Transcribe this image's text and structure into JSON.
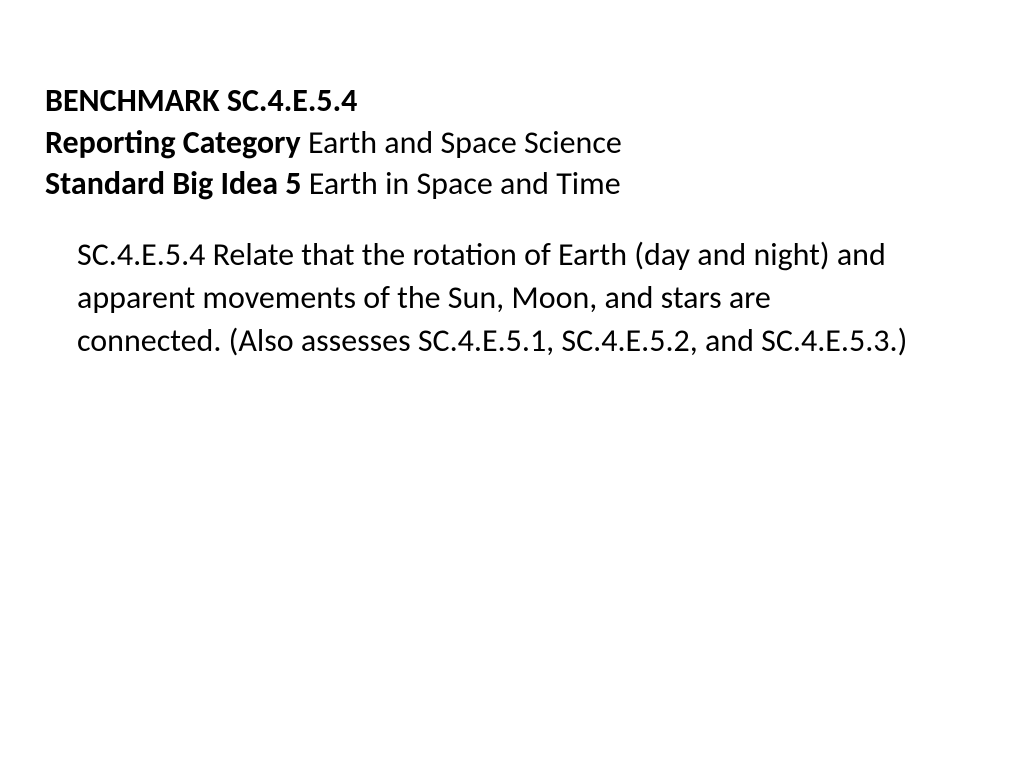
{
  "header": {
    "line1_bold": "BENCHMARK SC.4.E.5.4",
    "line2_label": "Reporting Category",
    "line2_value": " Earth and Space Science",
    "line3_label": "Standard Big Idea 5",
    "line3_value": " Earth in Space and Time"
  },
  "description": "SC.4.E.5.4 Relate that the rotation of Earth (day and night) and apparent movements of the Sun, Moon, and stars are connected. (Also assesses SC.4.E.5.1, SC.4.E.5.2, and SC.4.E.5.3.)",
  "styling": {
    "background_color": "#ffffff",
    "text_color": "#000000",
    "font_family": "Calibri",
    "header_fontsize": 32,
    "description_fontsize": 32,
    "bold_weight": "bold",
    "normal_weight": "normal"
  }
}
